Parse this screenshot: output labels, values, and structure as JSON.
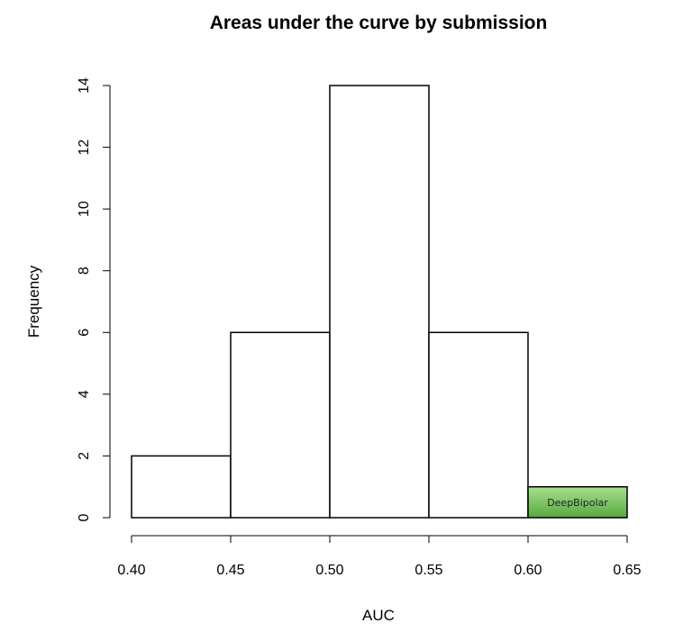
{
  "chart_data": {
    "type": "bar",
    "title": "Areas under the curve by submission",
    "xlabel": "AUC",
    "ylabel": "Frequency",
    "bins": [
      {
        "start": 0.4,
        "end": 0.45,
        "count": 2
      },
      {
        "start": 0.45,
        "end": 0.5,
        "count": 6
      },
      {
        "start": 0.5,
        "end": 0.55,
        "count": 14
      },
      {
        "start": 0.55,
        "end": 0.6,
        "count": 6
      },
      {
        "start": 0.6,
        "end": 0.65,
        "count": 1,
        "label": "DeepBipolar"
      }
    ],
    "xlim": [
      0.4,
      0.65
    ],
    "ylim": [
      0,
      14
    ],
    "x_ticks": [
      "0.40",
      "0.45",
      "0.50",
      "0.55",
      "0.60",
      "0.65"
    ],
    "y_ticks": [
      "0",
      "2",
      "4",
      "6",
      "8",
      "10",
      "12",
      "14"
    ],
    "highlight_color": "#6bbf55",
    "grid": false,
    "legend": "none"
  }
}
